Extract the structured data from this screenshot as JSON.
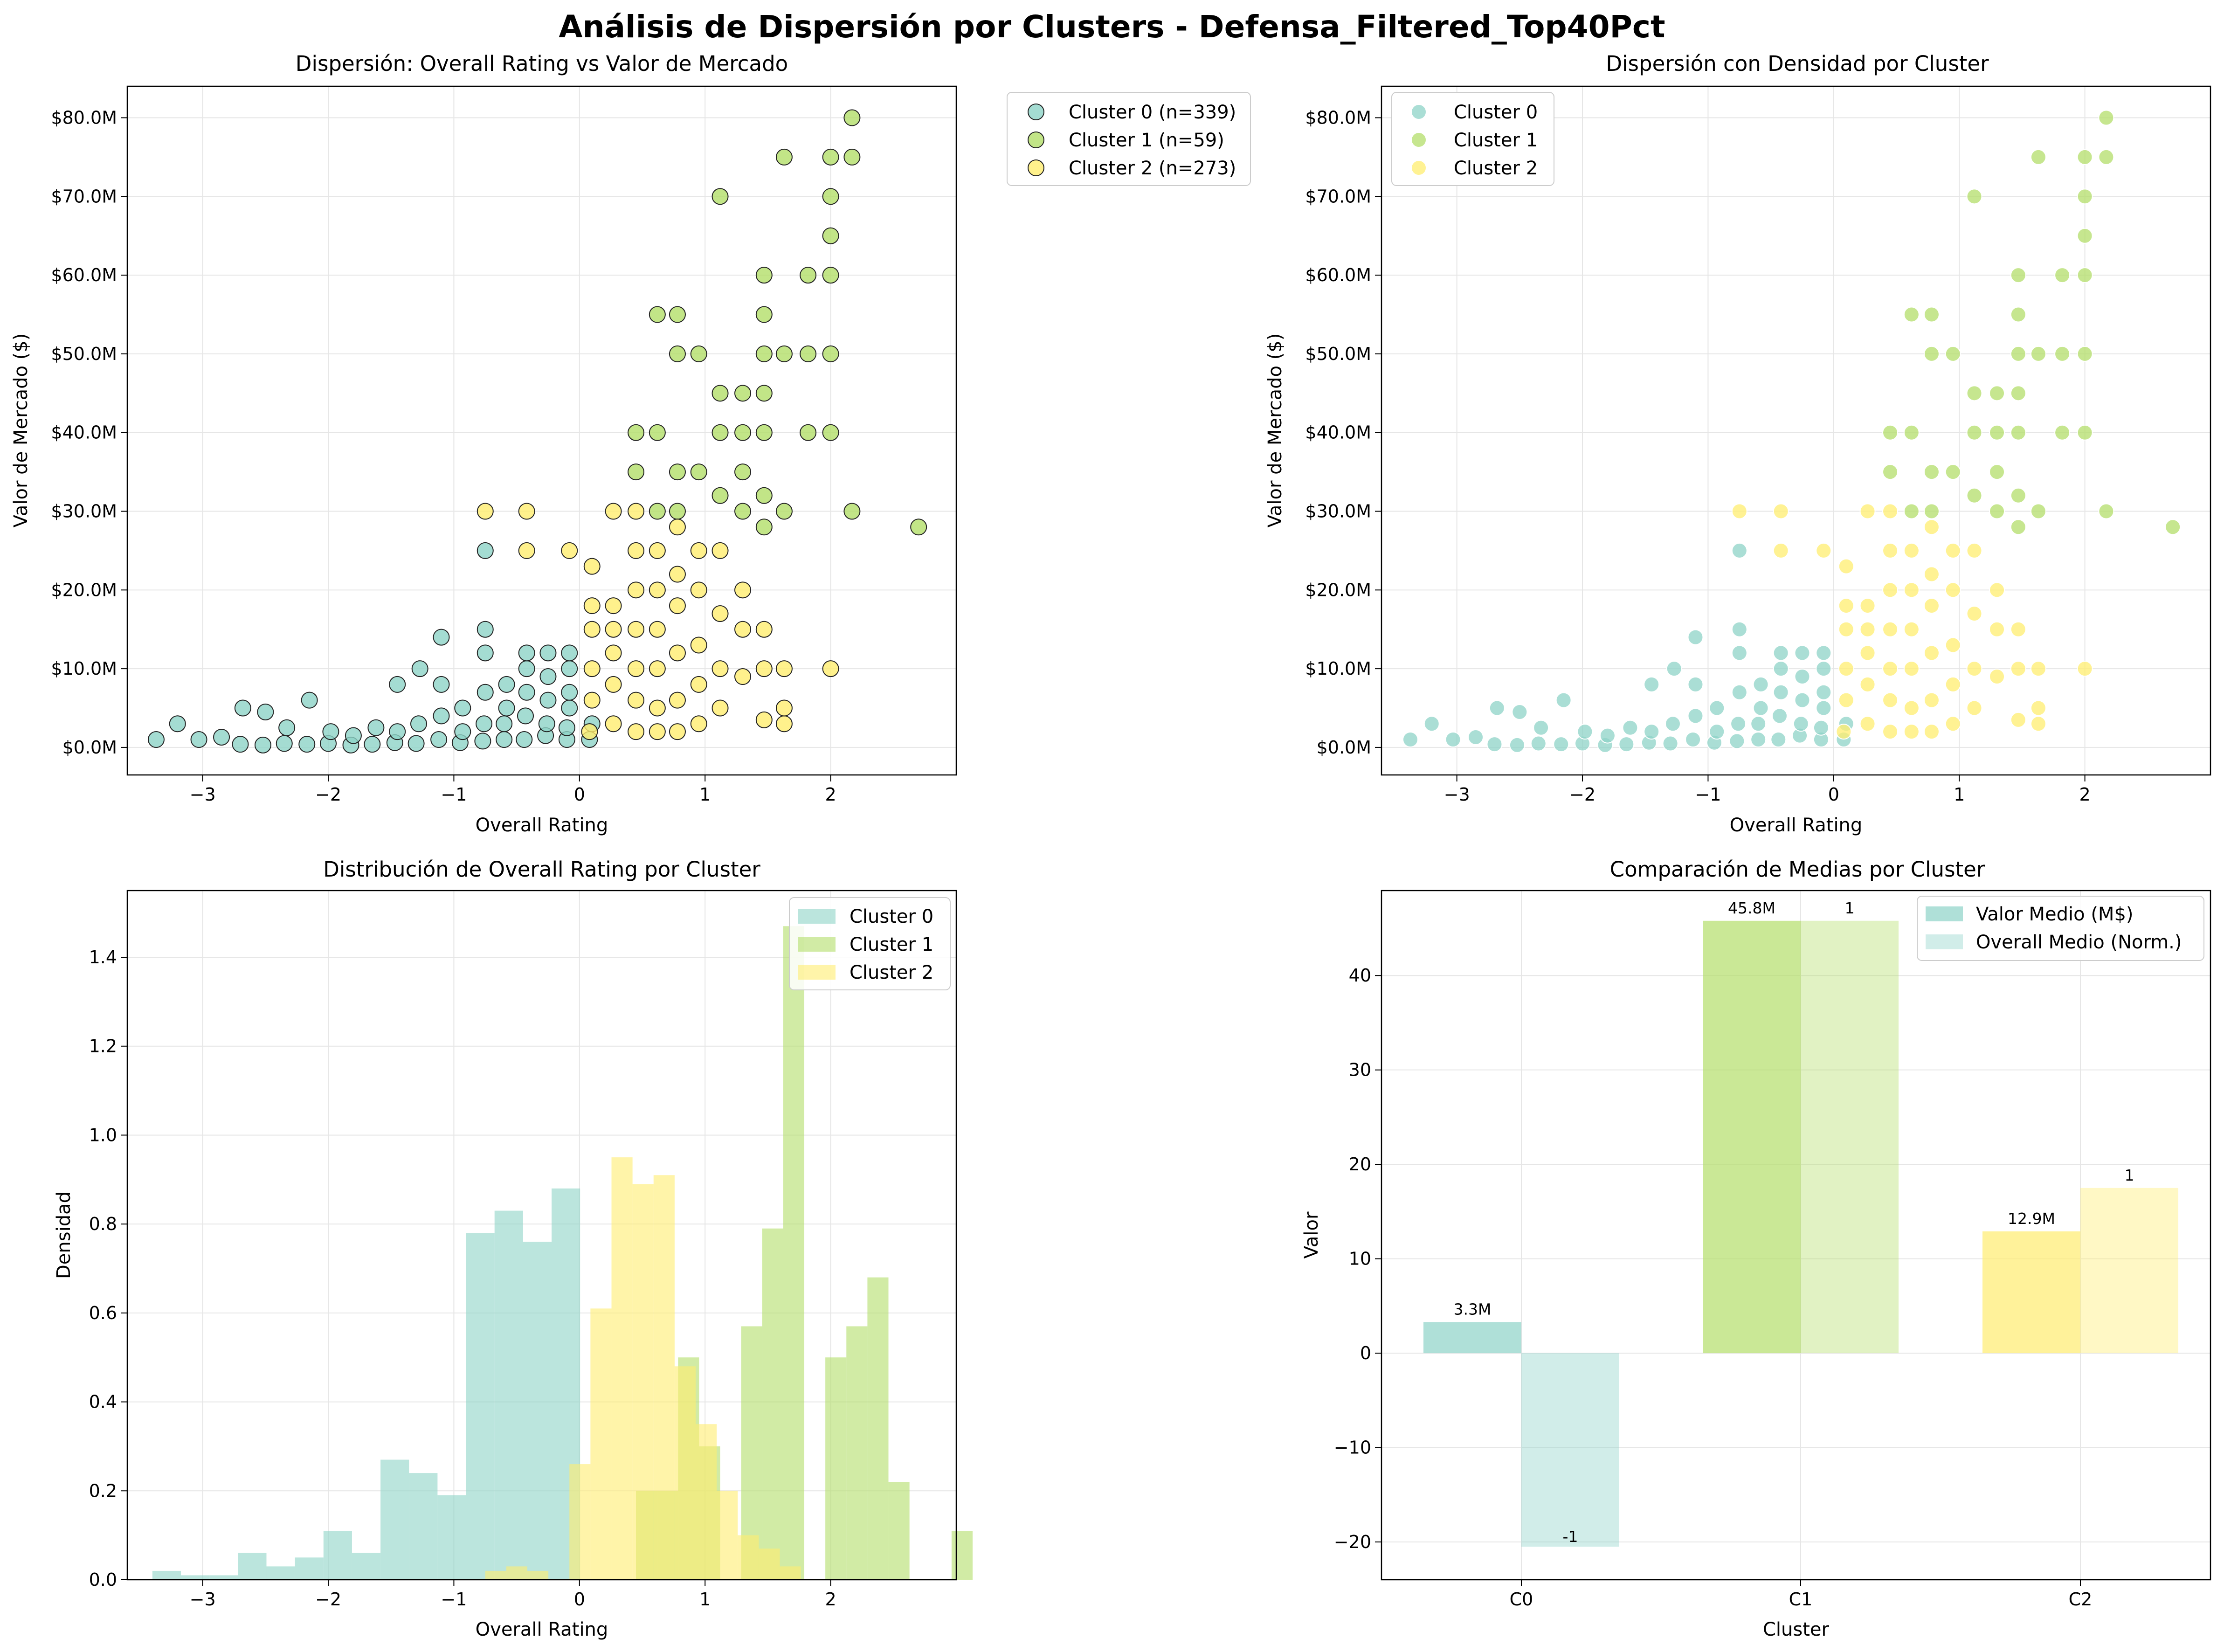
{
  "figure_title": "Análisis de Dispersión por Clusters - Defensa_Filtered_Top40Pct",
  "colors": {
    "cluster0": "#8dd3c7",
    "cluster1": "#b3de69",
    "cluster2": "#ffed6f"
  },
  "chart_data": [
    {
      "id": "scatter",
      "type": "scatter",
      "title": "Dispersión: Overall Rating vs Valor de Mercado",
      "xlabel": "Overall Rating",
      "ylabel": "Valor de Mercado ($)",
      "xlim": [
        -3.6,
        3.0
      ],
      "ylim": [
        -3.5,
        84
      ],
      "x_ticks": [
        "−3",
        "−2",
        "−1",
        "0",
        "1",
        "2"
      ],
      "y_ticks": [
        "$0.0M",
        "$10.0M",
        "$20.0M",
        "$30.0M",
        "$40.0M",
        "$50.0M",
        "$60.0M",
        "$70.0M",
        "$80.0M"
      ],
      "grid": true,
      "legend_position": "outside-right",
      "series": [
        {
          "name": "Cluster 0 (n=339)",
          "color": "#8dd3c7",
          "points": [
            [
              -3.37,
              1
            ],
            [
              -3.2,
              3
            ],
            [
              -3.03,
              1
            ],
            [
              -2.85,
              1.3
            ],
            [
              -2.7,
              0.4
            ],
            [
              -2.68,
              5
            ],
            [
              -2.52,
              0.3
            ],
            [
              -2.5,
              4.5
            ],
            [
              -2.35,
              0.5
            ],
            [
              -2.33,
              2.5
            ],
            [
              -2.17,
              0.4
            ],
            [
              -2.15,
              6
            ],
            [
              -2.0,
              0.5
            ],
            [
              -1.98,
              2
            ],
            [
              -1.82,
              0.3
            ],
            [
              -1.8,
              1.5
            ],
            [
              -1.65,
              0.4
            ],
            [
              -1.62,
              2.5
            ],
            [
              -1.47,
              0.6
            ],
            [
              -1.45,
              2
            ],
            [
              -1.45,
              8
            ],
            [
              -1.3,
              0.5
            ],
            [
              -1.28,
              3
            ],
            [
              -1.27,
              10
            ],
            [
              -1.12,
              1
            ],
            [
              -1.1,
              4
            ],
            [
              -1.1,
              8
            ],
            [
              -1.1,
              14
            ],
            [
              -0.95,
              0.6
            ],
            [
              -0.93,
              2
            ],
            [
              -0.93,
              5
            ],
            [
              -0.77,
              0.8
            ],
            [
              -0.76,
              3
            ],
            [
              -0.75,
              7
            ],
            [
              -0.75,
              12
            ],
            [
              -0.75,
              15
            ],
            [
              -0.75,
              25
            ],
            [
              -0.6,
              1
            ],
            [
              -0.6,
              3
            ],
            [
              -0.58,
              5
            ],
            [
              -0.58,
              8
            ],
            [
              -0.44,
              1
            ],
            [
              -0.43,
              4
            ],
            [
              -0.42,
              7
            ],
            [
              -0.42,
              10
            ],
            [
              -0.42,
              12
            ],
            [
              -0.27,
              1.5
            ],
            [
              -0.26,
              3
            ],
            [
              -0.25,
              6
            ],
            [
              -0.25,
              9
            ],
            [
              -0.25,
              12
            ],
            [
              -0.1,
              1
            ],
            [
              -0.1,
              2.5
            ],
            [
              -0.08,
              5
            ],
            [
              -0.08,
              7
            ],
            [
              -0.08,
              10
            ],
            [
              -0.08,
              12
            ],
            [
              0.08,
              1
            ],
            [
              0.1,
              3
            ]
          ]
        },
        {
          "name": "Cluster 1 (n=59)",
          "color": "#b3de69",
          "points": [
            [
              0.45,
              35
            ],
            [
              0.45,
              40
            ],
            [
              0.62,
              30
            ],
            [
              0.62,
              40
            ],
            [
              0.62,
              55
            ],
            [
              0.78,
              30
            ],
            [
              0.78,
              35
            ],
            [
              0.78,
              50
            ],
            [
              0.78,
              55
            ],
            [
              0.95,
              35
            ],
            [
              0.95,
              50
            ],
            [
              1.12,
              32
            ],
            [
              1.12,
              40
            ],
            [
              1.12,
              45
            ],
            [
              1.12,
              70
            ],
            [
              1.3,
              30
            ],
            [
              1.3,
              35
            ],
            [
              1.3,
              40
            ],
            [
              1.3,
              45
            ],
            [
              1.47,
              28
            ],
            [
              1.47,
              32
            ],
            [
              1.47,
              40
            ],
            [
              1.47,
              45
            ],
            [
              1.47,
              50
            ],
            [
              1.47,
              55
            ],
            [
              1.47,
              60
            ],
            [
              1.63,
              30
            ],
            [
              1.63,
              50
            ],
            [
              1.63,
              75
            ],
            [
              1.82,
              40
            ],
            [
              1.82,
              50
            ],
            [
              1.82,
              60
            ],
            [
              2.0,
              40
            ],
            [
              2.0,
              50
            ],
            [
              2.0,
              60
            ],
            [
              2.0,
              65
            ],
            [
              2.0,
              70
            ],
            [
              2.0,
              75
            ],
            [
              2.17,
              30
            ],
            [
              2.17,
              75
            ],
            [
              2.17,
              80
            ],
            [
              2.7,
              28
            ]
          ]
        },
        {
          "name": "Cluster 2 (n=273)",
          "color": "#ffed6f",
          "points": [
            [
              -0.75,
              30
            ],
            [
              -0.42,
              25
            ],
            [
              -0.42,
              30
            ],
            [
              -0.08,
              25
            ],
            [
              0.08,
              2
            ],
            [
              0.1,
              6
            ],
            [
              0.1,
              10
            ],
            [
              0.1,
              15
            ],
            [
              0.1,
              18
            ],
            [
              0.1,
              23
            ],
            [
              0.27,
              3
            ],
            [
              0.27,
              8
            ],
            [
              0.27,
              12
            ],
            [
              0.27,
              15
            ],
            [
              0.27,
              18
            ],
            [
              0.27,
              30
            ],
            [
              0.45,
              2
            ],
            [
              0.45,
              6
            ],
            [
              0.45,
              10
            ],
            [
              0.45,
              15
            ],
            [
              0.45,
              20
            ],
            [
              0.45,
              25
            ],
            [
              0.45,
              30
            ],
            [
              0.62,
              2
            ],
            [
              0.62,
              5
            ],
            [
              0.62,
              10
            ],
            [
              0.62,
              15
            ],
            [
              0.62,
              20
            ],
            [
              0.62,
              25
            ],
            [
              0.78,
              2
            ],
            [
              0.78,
              6
            ],
            [
              0.78,
              12
            ],
            [
              0.78,
              18
            ],
            [
              0.78,
              22
            ],
            [
              0.78,
              28
            ],
            [
              0.95,
              3
            ],
            [
              0.95,
              8
            ],
            [
              0.95,
              13
            ],
            [
              0.95,
              20
            ],
            [
              0.95,
              25
            ],
            [
              1.12,
              5
            ],
            [
              1.12,
              10
            ],
            [
              1.12,
              17
            ],
            [
              1.12,
              25
            ],
            [
              1.3,
              9
            ],
            [
              1.3,
              15
            ],
            [
              1.3,
              20
            ],
            [
              1.47,
              3.5
            ],
            [
              1.47,
              10
            ],
            [
              1.47,
              15
            ],
            [
              1.63,
              3
            ],
            [
              1.63,
              5
            ],
            [
              1.63,
              10
            ],
            [
              2.0,
              10
            ]
          ]
        }
      ]
    },
    {
      "id": "scatter_density",
      "type": "scatter",
      "title": "Dispersión con Densidad por Cluster",
      "xlabel": "Overall Rating",
      "ylabel": "Valor de Mercado ($)",
      "grid": true,
      "legend_position": "top-left",
      "series_names": [
        "Cluster 0",
        "Cluster 1",
        "Cluster 2"
      ]
    },
    {
      "id": "histogram",
      "type": "bar",
      "title": "Distribución de Overall Rating por Cluster",
      "xlabel": "Overall Rating",
      "ylabel": "Densidad",
      "xlim": [
        -3.6,
        3.0
      ],
      "ylim": [
        0,
        1.55
      ],
      "x_ticks": [
        "−3",
        "−2",
        "−1",
        "0",
        "1",
        "2"
      ],
      "y_ticks": [
        "0.0",
        "0.2",
        "0.4",
        "0.6",
        "0.8",
        "1.0",
        "1.2",
        "1.4"
      ],
      "grid": true,
      "legend_position": "top-right",
      "series": [
        {
          "name": "Cluster 0",
          "color": "#8dd3c7",
          "start": -3.4,
          "width": 0.227,
          "values": [
            0.02,
            0.01,
            0.01,
            0.06,
            0.03,
            0.05,
            0.11,
            0.06,
            0.27,
            0.24,
            0.19,
            0.78,
            0.83,
            0.76,
            0.88
          ]
        },
        {
          "name": "Cluster 1",
          "color": "#b3de69",
          "start": 0.45,
          "width": 0.1675,
          "values": [
            0.2,
            0.2,
            0.5,
            0.3,
            0.0,
            0.57,
            0.79,
            1.47,
            0.0,
            0.5,
            0.57,
            0.68,
            0.22,
            0.0,
            0.0,
            0.11
          ]
        },
        {
          "name": "Cluster 2",
          "color": "#ffed6f",
          "start": -0.75,
          "width": 0.1675,
          "values": [
            0.02,
            0.03,
            0.02,
            0.0,
            0.26,
            0.61,
            0.95,
            0.89,
            0.91,
            0.48,
            0.35,
            0.2,
            0.1,
            0.07,
            0.03
          ]
        }
      ]
    },
    {
      "id": "means",
      "type": "bar",
      "title": "Comparación de Medias por Cluster",
      "xlabel": "Cluster",
      "ylabel": "Valor",
      "categories": [
        "C0",
        "C1",
        "C2"
      ],
      "ylim": [
        -24,
        49
      ],
      "y_ticks": [
        "−20",
        "−10",
        "0",
        "10",
        "20",
        "30",
        "40"
      ],
      "grid": true,
      "legend_position": "top-right",
      "series": [
        {
          "name": "Valor Medio (M$)",
          "values": [
            3.3,
            45.8,
            12.9
          ],
          "labels": [
            "3.3M",
            "45.8M",
            "12.9M"
          ]
        },
        {
          "name": "Overall Medio (Norm.)",
          "values": [
            -20.5,
            45.8,
            17.5
          ],
          "labels": [
            "-1",
            "1",
            "1"
          ]
        }
      ]
    }
  ]
}
